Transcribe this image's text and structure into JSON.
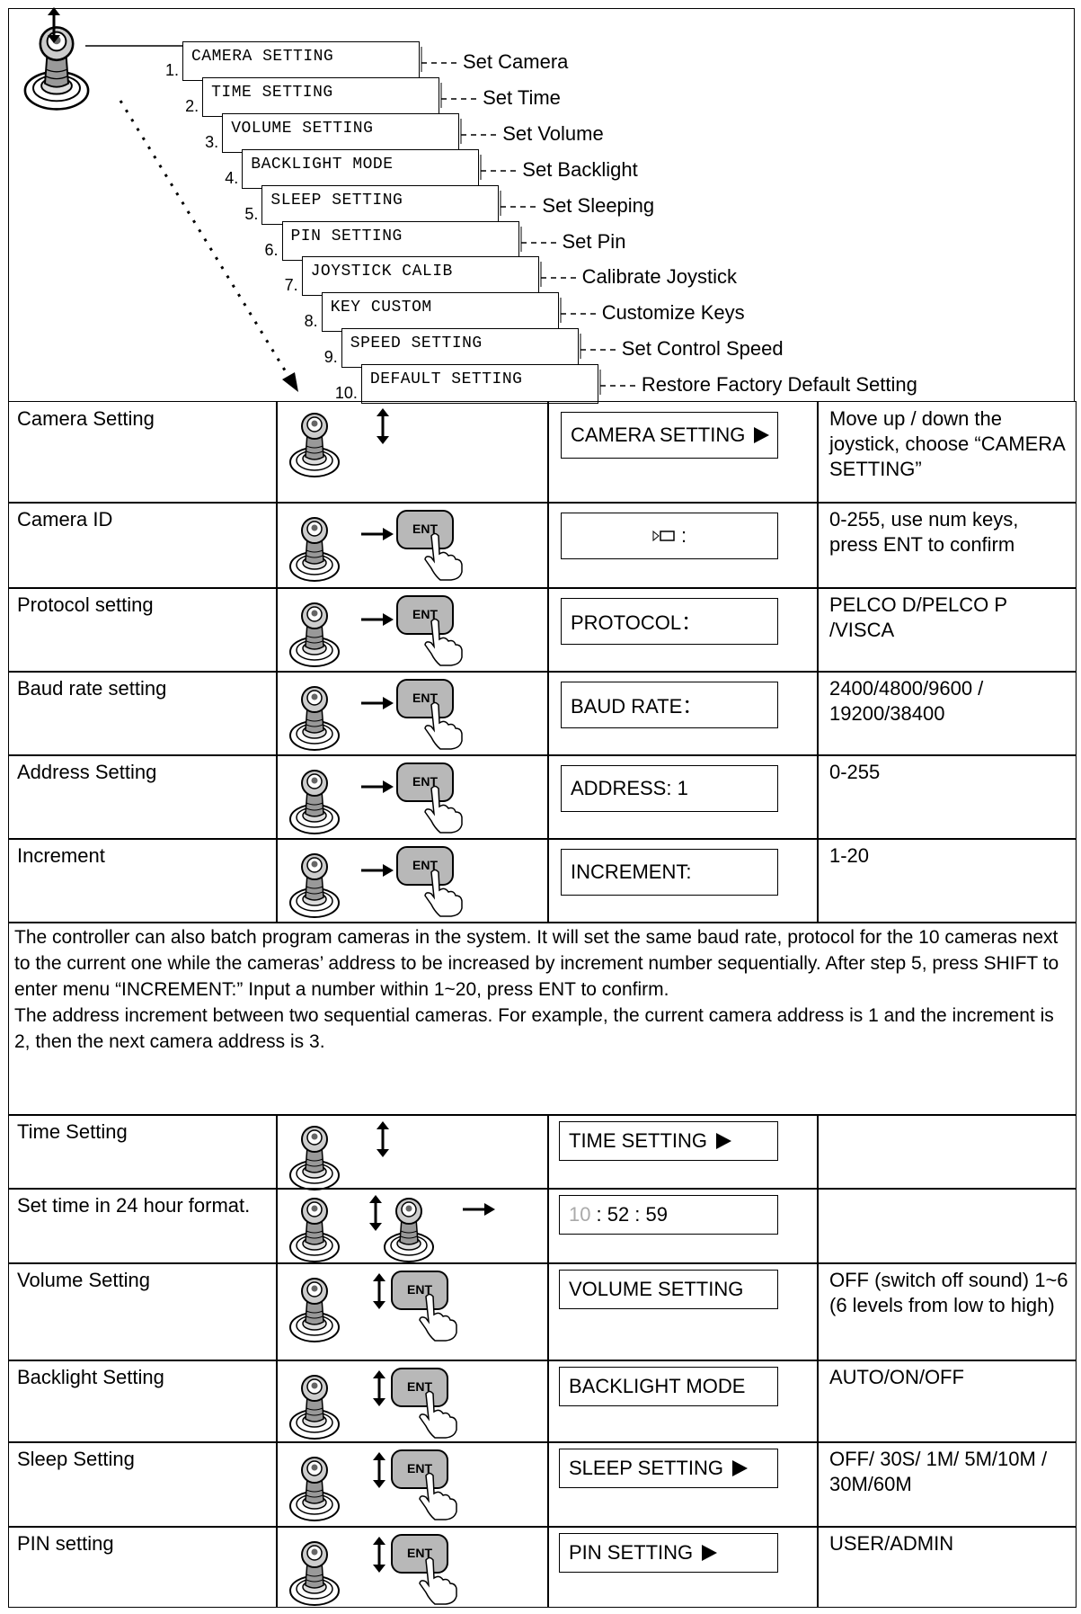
{
  "menu": {
    "items": [
      {
        "number": "1.",
        "label": "CAMERA SETTING",
        "action": "Set Camera"
      },
      {
        "number": "2.",
        "label": "TIME SETTING",
        "action": "Set Time"
      },
      {
        "number": "3.",
        "label": "VOLUME SETTING",
        "action": "Set Volume"
      },
      {
        "number": "4.",
        "label": "BACKLIGHT MODE",
        "action": "Set Backlight"
      },
      {
        "number": "5.",
        "label": "SLEEP SETTING",
        "action": "Set Sleeping"
      },
      {
        "number": "6.",
        "label": "PIN SETTING",
        "action": "Set Pin"
      },
      {
        "number": "7.",
        "label": "JOYSTICK CALIB",
        "action": "Calibrate Joystick"
      },
      {
        "number": "8.",
        "label": "KEY CUSTOM",
        "action": "Customize Keys"
      },
      {
        "number": "9.",
        "label": "SPEED SETTING",
        "action": "Set Control Speed"
      },
      {
        "number": "10.",
        "label": "DEFAULT SETTING",
        "action": "Restore Factory Default Setting"
      }
    ]
  },
  "labels": {
    "ent": "ENT"
  },
  "table": {
    "rows_top": [
      {
        "label": "Camera Setting",
        "display": "CAMERA SETTING",
        "description": "Move up / down the joystick, choose “CAMERA SETTING”"
      },
      {
        "label": "Camera ID",
        "display": ":",
        "description": "0-255, use num keys, press ENT to confirm"
      },
      {
        "label": "Protocol setting",
        "display": "PROTOCOL：",
        "description": "PELCO D/PELCO P /VISCA"
      },
      {
        "label": "Baud rate setting",
        "display": "BAUD RATE：",
        "description": "2400/4800/9600 / 19200/38400"
      },
      {
        "label": "Address Setting",
        "display": "ADDRESS: 1",
        "description": "0-255"
      },
      {
        "label": "Increment",
        "display": "INCREMENT:",
        "description": "1-20"
      }
    ],
    "note": [
      "The controller can also batch program cameras in the system. It will set the same baud rate, protocol for the 10 cameras next to the current one while the cameras’ address to be increased by increment number sequentially. After step 5, press SHIFT  to enter menu “INCREMENT:” Input a number within 1~20, press ENT to confirm.",
      "The address increment between two sequential cameras. For example, the current camera address is 1 and the increment is 2, then the next camera address is 3."
    ],
    "rows_bottom": [
      {
        "label": "Time Setting",
        "display": "TIME SETTING"
      },
      {
        "label": "Set time in 24 hour format.",
        "display": [
          "10",
          ": 52 : 59"
        ]
      },
      {
        "label": "Volume Setting",
        "display": "VOLUME SETTING",
        "description": "OFF (switch off sound) 1~6 (6 levels from low to high)"
      },
      {
        "label": "Backlight Setting",
        "display": "BACKLIGHT MODE",
        "description": "AUTO/ON/OFF"
      },
      {
        "label": "Sleep Setting",
        "display": "SLEEP SETTING",
        "description": "OFF/ 30S/ 1M/ 5M/10M / 30M/60M"
      },
      {
        "label": "PIN setting",
        "display": "PIN SETTING",
        "description": "USER/ADMIN"
      }
    ]
  }
}
